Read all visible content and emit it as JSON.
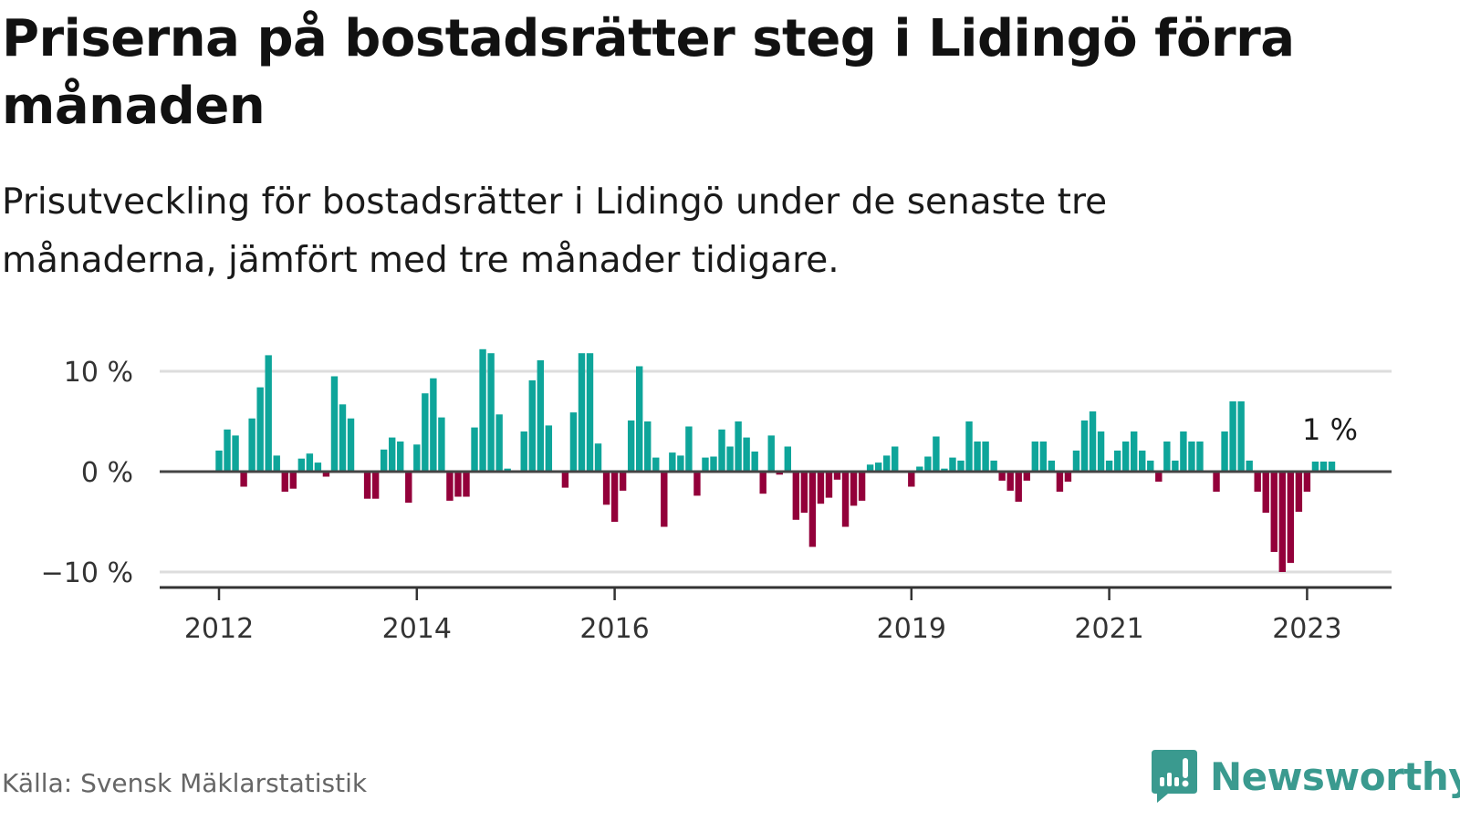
{
  "header": {
    "title": "Priserna på bostadsrätter steg i Lidingö förra månaden",
    "subtitle": "Prisutveckling för bostadsrätter i Lidingö under de senaste tre månaderna, jämfört med tre månader tidigare."
  },
  "footer": {
    "source": "Källa: Svensk Mäklarstatistik",
    "brand": "Newsworthy",
    "brand_icon": "bar-chart-exclamation-icon"
  },
  "colors": {
    "positive": "#0ea59a",
    "negative": "#93003a",
    "zero_line": "#444444",
    "grid": "#dddddd",
    "axis": "#333333",
    "brand": "#3a9a8f"
  },
  "chart_data": {
    "type": "bar",
    "title": "Priserna på bostadsrätter steg i Lidingö förra månaden",
    "subtitle": "Prisutveckling för bostadsrätter i Lidingö under de senaste tre månaderna, jämfört med tre månader tidigare.",
    "xlabel": "",
    "ylabel": "",
    "unit": "%",
    "frequency": "monthly",
    "start": "2012-01",
    "end": "2023-04",
    "ylim": [
      -11,
      12.5
    ],
    "yticks": [
      10,
      0,
      -10
    ],
    "ytick_labels": [
      "10 %",
      "0 %",
      "−10 %"
    ],
    "xticks": [
      2012,
      2014,
      2016,
      2019,
      2021,
      2023
    ],
    "xtick_labels": [
      "2012",
      "2014",
      "2016",
      "2019",
      "2021",
      "2023"
    ],
    "grid": true,
    "legend": "none",
    "annotation": {
      "label": "1 %",
      "target": "2023-04"
    },
    "values": [
      2.1,
      4.2,
      3.6,
      -1.5,
      5.3,
      8.4,
      11.6,
      1.6,
      -2.0,
      -1.7,
      1.3,
      1.8,
      0.9,
      -0.5,
      9.5,
      6.7,
      5.3,
      0,
      -2.7,
      -2.7,
      2.2,
      3.4,
      3.0,
      -3.1,
      2.7,
      7.8,
      9.3,
      5.4,
      -2.9,
      -2.5,
      -2.5,
      4.4,
      12.2,
      11.8,
      5.7,
      0.3,
      0,
      4.0,
      9.1,
      11.1,
      4.6,
      0,
      -1.6,
      5.9,
      11.8,
      11.8,
      2.8,
      -3.3,
      -5.0,
      -1.9,
      5.1,
      10.5,
      5.0,
      1.4,
      -5.5,
      1.9,
      1.6,
      4.5,
      -2.4,
      1.4,
      1.5,
      4.2,
      2.5,
      5.0,
      3.4,
      2.0,
      -2.2,
      3.6,
      -0.3,
      2.5,
      -4.8,
      -4.1,
      -7.5,
      -3.2,
      -2.6,
      -0.8,
      -5.5,
      -3.4,
      -2.9,
      0.7,
      0.9,
      1.6,
      2.5,
      0,
      -1.5,
      0.5,
      1.5,
      3.5,
      0.3,
      1.4,
      1.1,
      5.0,
      3.0,
      3.0,
      1.1,
      -0.9,
      -1.9,
      -3.0,
      -0.9,
      3.0,
      3.0,
      1.1,
      -2.0,
      -1.0,
      2.1,
      5.1,
      6.0,
      4.0,
      1.1,
      2.1,
      3.0,
      4.0,
      2.1,
      1.1,
      -1.0,
      3.0,
      1.1,
      4.0,
      3.0,
      3.0,
      0,
      -2.0,
      4.0,
      7.0,
      7.0,
      1.1,
      -2.0,
      -4.1,
      -8.0,
      -10.0,
      -9.1,
      -4.0,
      -2.0,
      1.0,
      1.0,
      1.0
    ]
  }
}
